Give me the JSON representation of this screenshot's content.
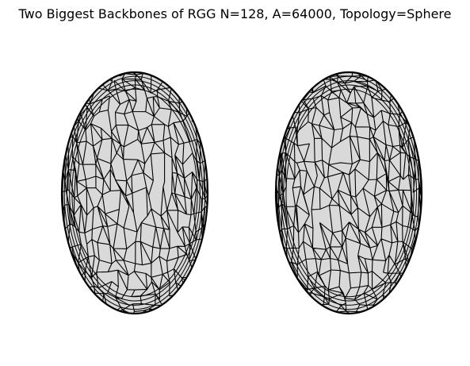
{
  "figure": {
    "title": "Two Biggest Backbones of RGG N=128, A=64000, Topology=Sphere"
  },
  "colors": {
    "background": "#ffffff",
    "sphere_fill": "#d9d9d9",
    "edge_stroke": "#000000"
  },
  "panels": [
    {
      "name": "backbone-1"
    },
    {
      "name": "backbone-2"
    }
  ]
}
